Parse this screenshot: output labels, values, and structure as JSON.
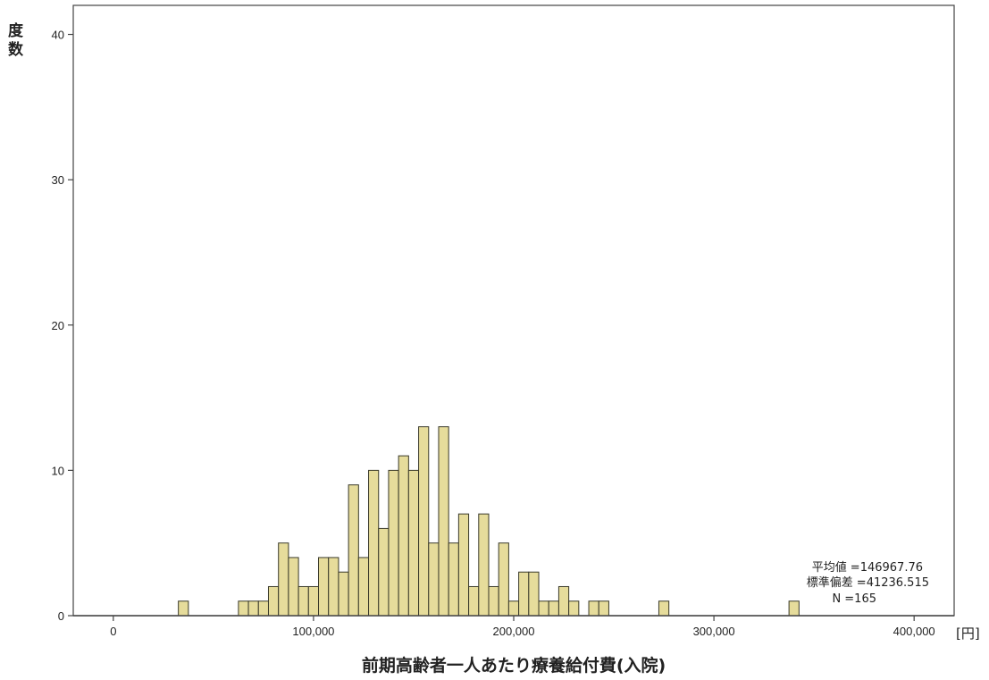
{
  "chart_data": {
    "type": "bar",
    "xlabel": "前期高齢者一人あたり療養給付費(入院)",
    "ylabel_lines": [
      "度",
      "数"
    ],
    "x_unit": "[円]",
    "x_ticks": [
      {
        "value": 0,
        "label": "0"
      },
      {
        "value": 100000,
        "label": "100,000"
      },
      {
        "value": 200000,
        "label": "200,000"
      },
      {
        "value": 300000,
        "label": "300,000"
      },
      {
        "value": 400000,
        "label": "400,000"
      }
    ],
    "y_ticks": [
      {
        "value": 0,
        "label": "0"
      },
      {
        "value": 10,
        "label": "10"
      },
      {
        "value": 20,
        "label": "20"
      },
      {
        "value": 30,
        "label": "30"
      },
      {
        "value": 40,
        "label": "40"
      }
    ],
    "xlim": [
      -20000,
      420000
    ],
    "ylim": [
      0,
      42
    ],
    "bin_width": 5000,
    "bar_color": "#e6dc9b",
    "bar_stroke": "#3a3a2a",
    "bins": [
      {
        "x": 35000,
        "y": 1
      },
      {
        "x": 65000,
        "y": 1
      },
      {
        "x": 70000,
        "y": 1
      },
      {
        "x": 75000,
        "y": 1
      },
      {
        "x": 80000,
        "y": 2
      },
      {
        "x": 85000,
        "y": 5
      },
      {
        "x": 90000,
        "y": 4
      },
      {
        "x": 95000,
        "y": 2
      },
      {
        "x": 100000,
        "y": 2
      },
      {
        "x": 105000,
        "y": 4
      },
      {
        "x": 110000,
        "y": 4
      },
      {
        "x": 115000,
        "y": 3
      },
      {
        "x": 120000,
        "y": 9
      },
      {
        "x": 125000,
        "y": 4
      },
      {
        "x": 130000,
        "y": 10
      },
      {
        "x": 135000,
        "y": 6
      },
      {
        "x": 140000,
        "y": 10
      },
      {
        "x": 145000,
        "y": 11
      },
      {
        "x": 150000,
        "y": 10
      },
      {
        "x": 155000,
        "y": 13
      },
      {
        "x": 160000,
        "y": 5
      },
      {
        "x": 165000,
        "y": 13
      },
      {
        "x": 170000,
        "y": 5
      },
      {
        "x": 175000,
        "y": 7
      },
      {
        "x": 180000,
        "y": 2
      },
      {
        "x": 185000,
        "y": 7
      },
      {
        "x": 190000,
        "y": 2
      },
      {
        "x": 195000,
        "y": 5
      },
      {
        "x": 200000,
        "y": 1
      },
      {
        "x": 205000,
        "y": 3
      },
      {
        "x": 210000,
        "y": 3
      },
      {
        "x": 215000,
        "y": 1
      },
      {
        "x": 220000,
        "y": 1
      },
      {
        "x": 225000,
        "y": 2
      },
      {
        "x": 230000,
        "y": 1
      },
      {
        "x": 240000,
        "y": 1
      },
      {
        "x": 245000,
        "y": 1
      },
      {
        "x": 275000,
        "y": 1
      },
      {
        "x": 340000,
        "y": 1
      }
    ],
    "stats": [
      {
        "label": "平均値",
        "value": "=146967.76"
      },
      {
        "label": "標準偏差",
        "value": "=41236.515"
      },
      {
        "label": "N",
        "value": "=165"
      }
    ]
  }
}
